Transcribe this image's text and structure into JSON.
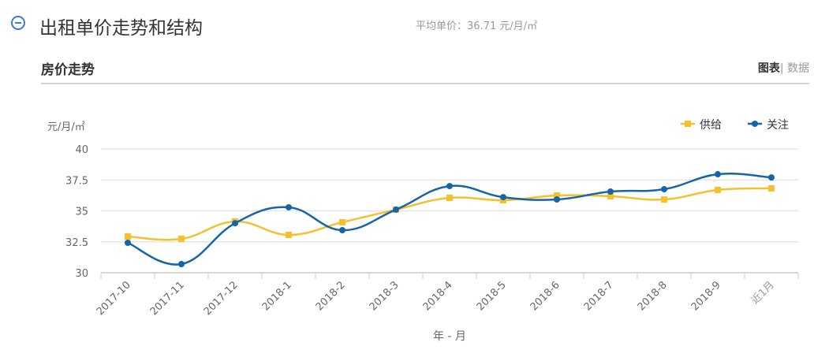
{
  "header": {
    "title": "出租单价走势和结构",
    "avg_label": "平均单价：",
    "avg_value": "36.71 元/月/㎡"
  },
  "section": {
    "title": "房价走势",
    "tab_chart": "图表",
    "tab_sep": "|",
    "tab_data": "数据"
  },
  "colors": {
    "supply": "#f5c02c",
    "attention": "#1565a8"
  },
  "chart_data": {
    "type": "line",
    "ylabel": "元/月/㎡",
    "xlabel": "年 - 月",
    "ylim": [
      30,
      40
    ],
    "yticks": [
      30,
      32.5,
      35,
      37.5,
      40
    ],
    "ytick_labels": [
      "30",
      "32.5",
      "35",
      "37.5",
      "40"
    ],
    "categories": [
      "2017-10",
      "2017-11",
      "2017-12",
      "2018-1",
      "2018-2",
      "2018-3",
      "2018-4",
      "2018-5",
      "2018-6",
      "2018-7",
      "2018-8",
      "2018-9",
      "近1月"
    ],
    "legend": "top-right",
    "grid": true,
    "series": [
      {
        "name": "供给",
        "marker": "square",
        "values": [
          32.93,
          32.74,
          34.14,
          33.06,
          34.08,
          35.1,
          36.05,
          35.86,
          36.24,
          36.18,
          35.92,
          36.69,
          36.82
        ]
      },
      {
        "name": "关注",
        "marker": "circle",
        "values": [
          32.42,
          30.7,
          34.0,
          35.29,
          33.44,
          35.1,
          37.0,
          36.11,
          35.92,
          36.56,
          36.75,
          37.96,
          37.7
        ]
      }
    ]
  }
}
